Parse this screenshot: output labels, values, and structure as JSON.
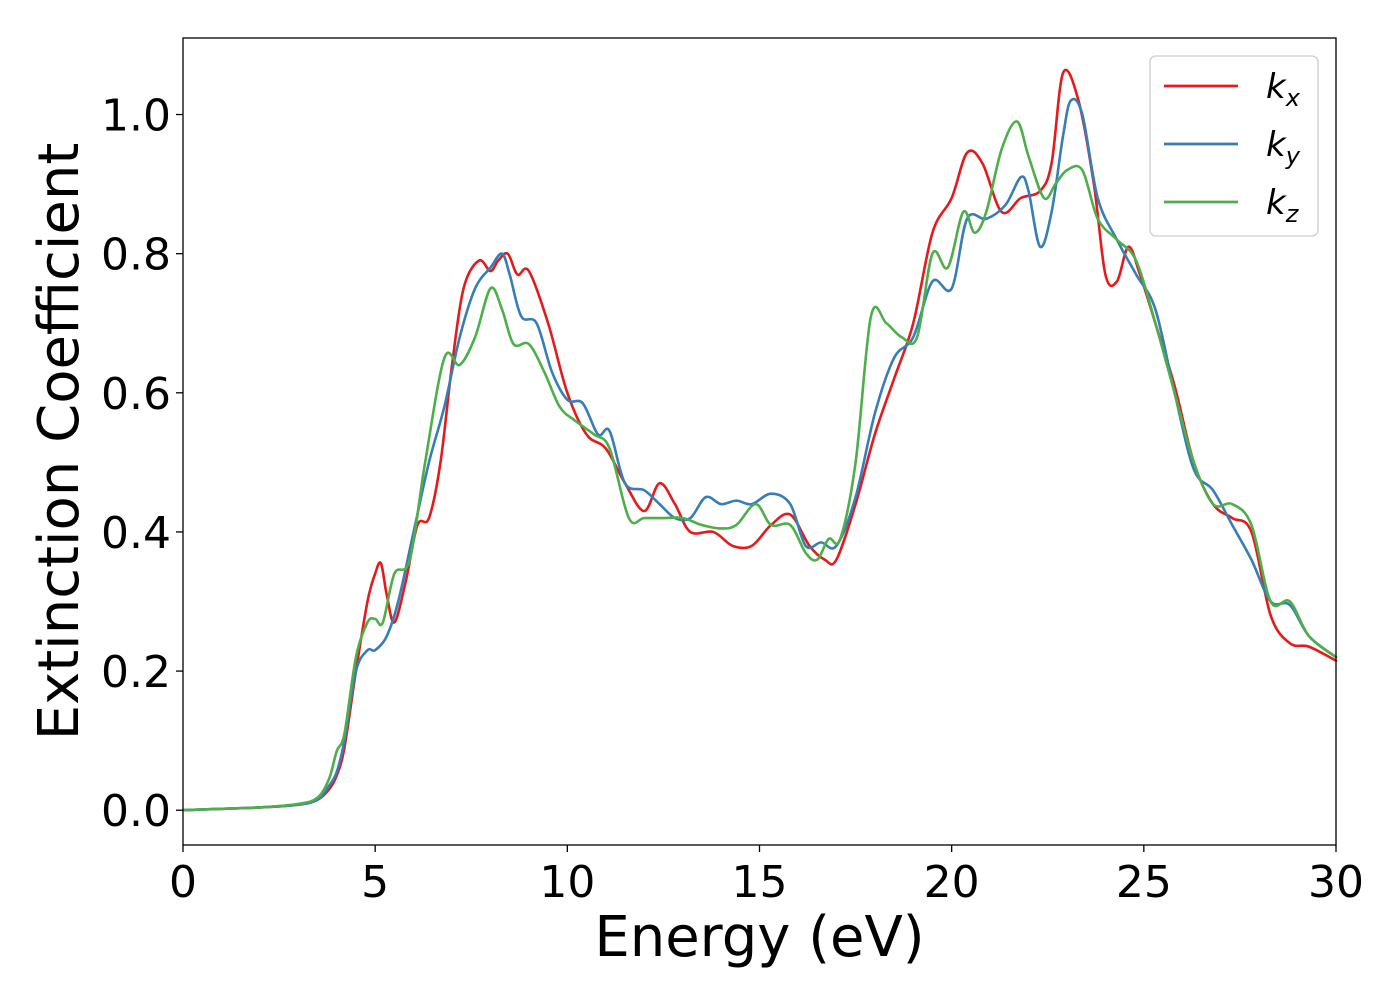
{
  "chart_data": {
    "type": "line",
    "title": "",
    "xlabel": "Energy (eV)",
    "ylabel": "Extinction Coefficient",
    "xlim": [
      0,
      30
    ],
    "ylim": [
      -0.05,
      1.11
    ],
    "xticks": [
      0,
      5,
      10,
      15,
      20,
      25,
      30
    ],
    "yticks": [
      0.0,
      0.2,
      0.4,
      0.6,
      0.8,
      1.0
    ],
    "xtick_labels": [
      "0",
      "5",
      "10",
      "15",
      "20",
      "25",
      "30"
    ],
    "ytick_labels": [
      "0.0",
      "0.2",
      "0.4",
      "0.6",
      "0.8",
      "1.0"
    ],
    "grid": false,
    "legend_position": "top-right",
    "series": [
      {
        "name": "k_x",
        "label_main": "k",
        "label_sub": "x",
        "color": "#e41a1c",
        "x": [
          0,
          1,
          2,
          3,
          3.5,
          3.8,
          4.0,
          4.2,
          4.5,
          4.8,
          5.0,
          5.15,
          5.3,
          5.5,
          5.8,
          6.1,
          6.4,
          6.7,
          7.0,
          7.3,
          7.7,
          8.0,
          8.2,
          8.45,
          8.7,
          9.0,
          9.5,
          10.0,
          10.5,
          11.0,
          11.5,
          12.0,
          12.4,
          12.8,
          13.2,
          13.8,
          14.3,
          14.8,
          15.3,
          15.8,
          16.3,
          16.7,
          17.0,
          17.5,
          18.0,
          18.5,
          19.0,
          19.5,
          20.0,
          20.4,
          20.8,
          21.3,
          21.8,
          22.3,
          22.6,
          22.9,
          23.3,
          23.7,
          24.0,
          24.3,
          24.6,
          24.9,
          25.3,
          25.8,
          26.3,
          26.8,
          27.3,
          27.8,
          28.3,
          28.8,
          29.3,
          30.0
        ],
        "values": [
          0.0,
          0.002,
          0.004,
          0.008,
          0.015,
          0.03,
          0.05,
          0.09,
          0.2,
          0.3,
          0.34,
          0.355,
          0.31,
          0.27,
          0.33,
          0.41,
          0.42,
          0.5,
          0.64,
          0.75,
          0.79,
          0.775,
          0.79,
          0.8,
          0.77,
          0.775,
          0.7,
          0.6,
          0.54,
          0.52,
          0.47,
          0.43,
          0.47,
          0.44,
          0.4,
          0.4,
          0.38,
          0.38,
          0.41,
          0.425,
          0.38,
          0.36,
          0.36,
          0.44,
          0.54,
          0.62,
          0.7,
          0.83,
          0.88,
          0.945,
          0.93,
          0.86,
          0.88,
          0.89,
          0.93,
          1.06,
          1.02,
          0.9,
          0.77,
          0.76,
          0.81,
          0.77,
          0.7,
          0.61,
          0.5,
          0.44,
          0.42,
          0.4,
          0.28,
          0.24,
          0.235,
          0.215
        ]
      },
      {
        "name": "k_y",
        "label_main": "k",
        "label_sub": "y",
        "color": "#377eb8",
        "x": [
          0,
          1,
          2,
          3,
          3.5,
          3.8,
          4.0,
          4.2,
          4.5,
          4.8,
          5.0,
          5.3,
          5.6,
          6.0,
          6.4,
          6.8,
          7.2,
          7.6,
          8.0,
          8.3,
          8.5,
          8.8,
          9.2,
          9.6,
          10.0,
          10.4,
          10.8,
          11.1,
          11.5,
          12.0,
          12.4,
          12.8,
          13.2,
          13.6,
          14.0,
          14.4,
          14.8,
          15.3,
          15.8,
          16.2,
          16.6,
          17.0,
          17.5,
          18.0,
          18.5,
          19.0,
          19.5,
          20.0,
          20.4,
          20.9,
          21.4,
          21.8,
          22.0,
          22.3,
          22.6,
          22.9,
          23.1,
          23.4,
          23.8,
          24.3,
          24.8,
          25.3,
          25.8,
          26.3,
          26.8,
          27.3,
          27.8,
          28.3,
          28.8,
          29.3,
          30.0
        ],
        "values": [
          0.0,
          0.002,
          0.004,
          0.008,
          0.015,
          0.035,
          0.055,
          0.1,
          0.2,
          0.23,
          0.23,
          0.25,
          0.3,
          0.4,
          0.5,
          0.58,
          0.68,
          0.75,
          0.78,
          0.8,
          0.77,
          0.71,
          0.7,
          0.63,
          0.59,
          0.585,
          0.54,
          0.545,
          0.47,
          0.46,
          0.44,
          0.42,
          0.42,
          0.45,
          0.44,
          0.445,
          0.44,
          0.455,
          0.44,
          0.38,
          0.385,
          0.38,
          0.45,
          0.57,
          0.65,
          0.68,
          0.76,
          0.75,
          0.85,
          0.85,
          0.87,
          0.91,
          0.89,
          0.81,
          0.86,
          0.97,
          1.02,
          1.0,
          0.88,
          0.82,
          0.77,
          0.72,
          0.6,
          0.49,
          0.46,
          0.41,
          0.36,
          0.3,
          0.295,
          0.25,
          0.22
        ]
      },
      {
        "name": "k_z",
        "label_main": "k",
        "label_sub": "z",
        "color": "#4daf4a",
        "x": [
          0,
          1,
          2,
          3,
          3.5,
          3.8,
          4.0,
          4.2,
          4.5,
          4.8,
          5.0,
          5.2,
          5.5,
          5.9,
          6.3,
          6.8,
          7.2,
          7.6,
          8.0,
          8.3,
          8.6,
          9.0,
          9.4,
          9.8,
          10.2,
          10.7,
          11.1,
          11.6,
          12.0,
          12.5,
          13.0,
          13.5,
          14.0,
          14.4,
          14.9,
          15.3,
          15.8,
          16.2,
          16.5,
          16.8,
          17.1,
          17.5,
          17.9,
          18.3,
          18.7,
          19.1,
          19.5,
          19.9,
          20.3,
          20.6,
          20.9,
          21.3,
          21.7,
          22.0,
          22.4,
          22.7,
          23.0,
          23.4,
          23.8,
          24.3,
          24.8,
          25.3,
          25.8,
          26.3,
          26.8,
          27.3,
          27.8,
          28.3,
          28.8,
          29.3,
          30.0
        ],
        "values": [
          0.0,
          0.002,
          0.004,
          0.009,
          0.018,
          0.045,
          0.085,
          0.11,
          0.22,
          0.27,
          0.275,
          0.27,
          0.34,
          0.36,
          0.5,
          0.65,
          0.64,
          0.68,
          0.75,
          0.72,
          0.67,
          0.67,
          0.63,
          0.58,
          0.56,
          0.54,
          0.52,
          0.42,
          0.42,
          0.42,
          0.42,
          0.41,
          0.405,
          0.41,
          0.44,
          0.41,
          0.41,
          0.37,
          0.36,
          0.39,
          0.39,
          0.5,
          0.71,
          0.7,
          0.68,
          0.68,
          0.8,
          0.78,
          0.86,
          0.83,
          0.86,
          0.95,
          0.99,
          0.94,
          0.88,
          0.9,
          0.92,
          0.92,
          0.85,
          0.82,
          0.79,
          0.7,
          0.6,
          0.5,
          0.44,
          0.44,
          0.41,
          0.3,
          0.3,
          0.25,
          0.22
        ]
      }
    ]
  }
}
